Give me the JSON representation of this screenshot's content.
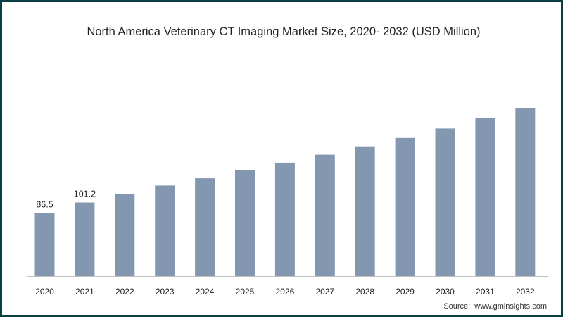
{
  "chart_data": {
    "type": "bar",
    "title": "North America Veterinary CT Imaging Market Size, 2020- 2032 (USD Million)",
    "categories": [
      "2020",
      "2021",
      "2022",
      "2023",
      "2024",
      "2025",
      "2026",
      "2027",
      "2028",
      "2029",
      "2030",
      "2031",
      "2032"
    ],
    "values": [
      86.5,
      101.2,
      112.5,
      124.5,
      134.5,
      145.5,
      156.0,
      167.0,
      178.5,
      190.0,
      203.0,
      217.0,
      230.5
    ],
    "data_labels": [
      "86.5",
      "101.2",
      "",
      "",
      "",
      "",
      "",
      "",
      "",
      "",
      "",
      "",
      ""
    ],
    "xlabel": "",
    "ylabel": "",
    "ylim": [
      0,
      230.5
    ],
    "grid": false,
    "legend": "none",
    "bar_color": "#8497b0",
    "axis_color": "#bfbfbf"
  },
  "source": {
    "label": "Source:",
    "url": "www.gminsights.com"
  },
  "colors": {
    "frame_border": "#0b3d45",
    "background": "#ffffff"
  }
}
